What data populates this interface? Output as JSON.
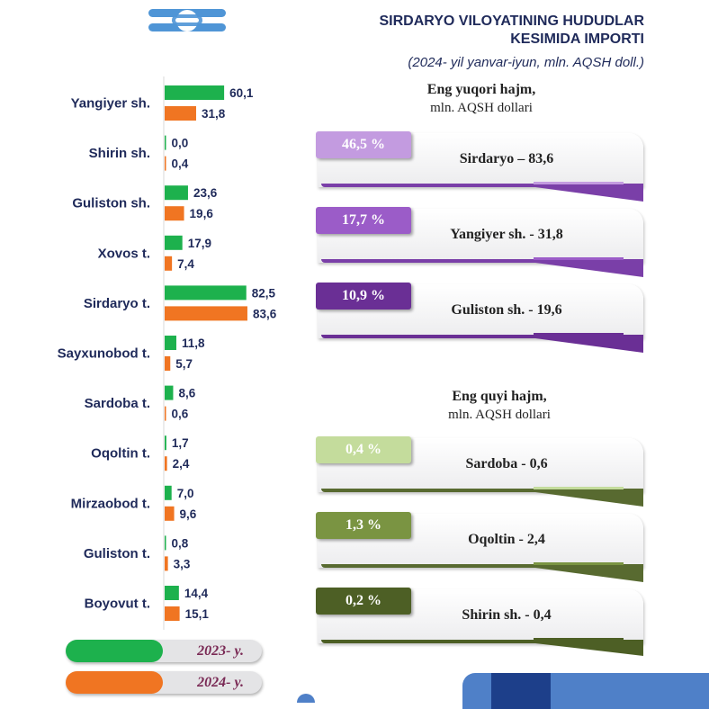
{
  "header": {
    "title_line1": "SIRDARYO VILOYATINING HUDUDLAR",
    "title_line2": "KESIMIDA IMPORTI",
    "subtitle": "(2024- yil yanvar-iyun, mln. AQSH doll.)"
  },
  "chart_data": {
    "type": "bar",
    "orientation": "horizontal",
    "categories": [
      "Yangiyer sh.",
      "Shirin sh.",
      "Guliston sh.",
      "Xovos t.",
      "Sirdaryo t.",
      "Sayxunobod t.",
      "Sardoba t.",
      "Oqoltin t.",
      "Mirzaobod t.",
      "Guliston t.",
      "Boyovut t."
    ],
    "series": [
      {
        "name": "2023- y.",
        "color": "#1db14d",
        "values": [
          60.1,
          0.0,
          23.6,
          17.9,
          82.5,
          11.8,
          8.6,
          1.7,
          7.0,
          0.8,
          14.4
        ],
        "labels": [
          "60,1",
          "0,0",
          "23,6",
          "17,9",
          "82,5",
          "11,8",
          "8,6",
          "1,7",
          "7,0",
          "0,8",
          "14,4"
        ]
      },
      {
        "name": "2024- y.",
        "color": "#f07522",
        "values": [
          31.8,
          0.4,
          19.6,
          7.4,
          83.6,
          5.7,
          0.6,
          2.4,
          9.6,
          3.3,
          15.1
        ],
        "labels": [
          "31,8",
          "0,4",
          "19,6",
          "7,4",
          "83,6",
          "5,7",
          "0,6",
          "2,4",
          "9,6",
          "3,3",
          "15,1"
        ]
      }
    ],
    "xlim": [
      0,
      100
    ],
    "grid": false
  },
  "legend": {
    "items": [
      {
        "label": "2023- y.",
        "color": "#1db14d"
      },
      {
        "label": "2024- y.",
        "color": "#f07522"
      }
    ]
  },
  "top_section": {
    "heading": "Eng yuqori hajm,",
    "unit": "mln. AQSH dollari",
    "cards": [
      {
        "percent": "46,5 %",
        "name": "Sirdaryo – 83,6",
        "color": "#c39be0",
        "accent": "#7a3fa8"
      },
      {
        "percent": "17,7 %",
        "name": "Yangiyer sh. - 31,8",
        "color": "#9b5cc8",
        "accent": "#7a3fa8"
      },
      {
        "percent": "10,9 %",
        "name": "Guliston sh.  - 19,6",
        "color": "#6a2f95",
        "accent": "#6a2f95"
      }
    ]
  },
  "bottom_section": {
    "heading": "Eng quyi hajm,",
    "unit": "mln. AQSH dollari",
    "cards": [
      {
        "percent": "0,4 %",
        "name": "Sardoba -  0,6",
        "color": "#c4dc9c",
        "accent": "#586a30"
      },
      {
        "percent": "1,3 %",
        "name": "Oqoltin - 2,4",
        "color": "#7a9442",
        "accent": "#586a30"
      },
      {
        "percent": "0,2 %",
        "name": "Shirin sh. - 0,4",
        "color": "#4d5f25",
        "accent": "#4d5f25"
      }
    ]
  }
}
